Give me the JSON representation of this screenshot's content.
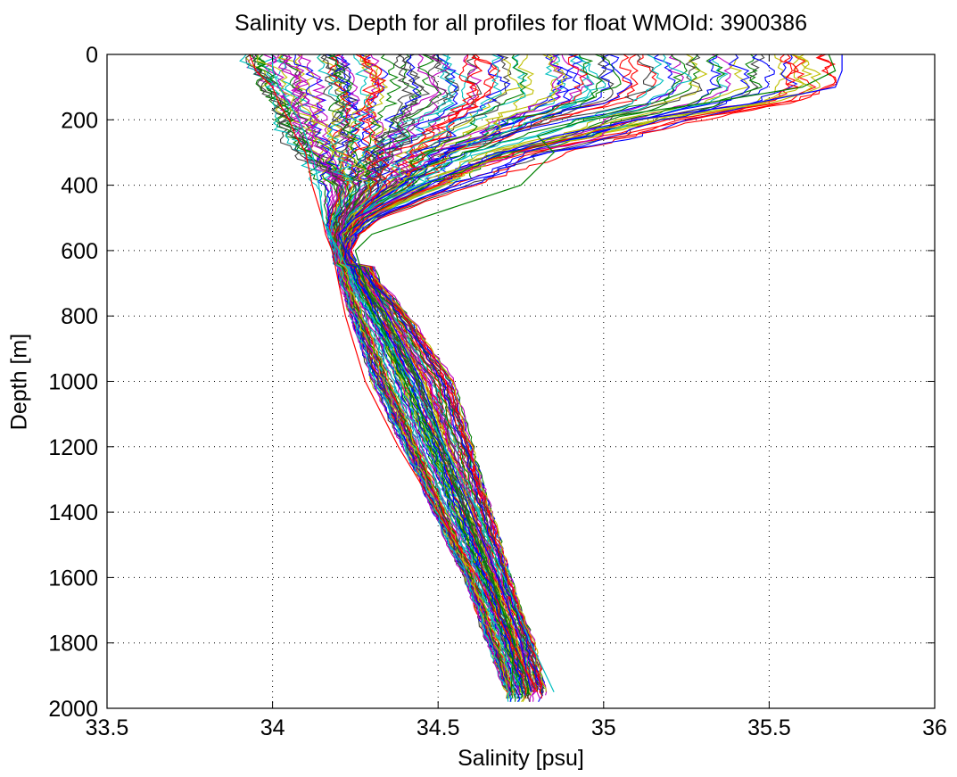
{
  "chart_data": {
    "type": "line",
    "title": "Salinity vs. Depth for all profiles for float WMOId: 3900386",
    "xlabel": "Salinity [psu]",
    "ylabel": "Depth [m]",
    "xlim": [
      33.5,
      36
    ],
    "ylim": [
      0,
      2000
    ],
    "y_reversed": true,
    "grid": true,
    "grid_style": "dotted",
    "x_ticks": [
      "33.5",
      "34",
      "34.5",
      "35",
      "35.5",
      "36"
    ],
    "y_ticks": [
      "0",
      "200",
      "400",
      "600",
      "800",
      "1000",
      "1200",
      "1400",
      "1600",
      "1800",
      "2000"
    ],
    "series_colors": [
      "#0000ff",
      "#008000",
      "#ff0000",
      "#00bfbf",
      "#bf00bf",
      "#bfbf00",
      "#404040"
    ],
    "series_count": 120,
    "envelope": {
      "depth": [
        0,
        50,
        100,
        150,
        200,
        250,
        300,
        400,
        500,
        550,
        600,
        700,
        800,
        1000,
        1200,
        1400,
        1600,
        1800,
        1950
      ],
      "salinity_min": [
        33.93,
        33.95,
        33.97,
        34.0,
        34.02,
        34.05,
        34.08,
        34.12,
        34.13,
        34.15,
        34.17,
        34.18,
        34.2,
        34.25,
        34.35,
        34.45,
        34.55,
        34.62,
        34.68
      ],
      "salinity_max": [
        35.7,
        35.72,
        35.72,
        35.6,
        35.35,
        35.2,
        34.95,
        34.75,
        34.45,
        34.35,
        34.3,
        34.35,
        34.45,
        34.6,
        34.65,
        34.7,
        34.75,
        34.82,
        34.85
      ]
    },
    "series": [
      {
        "depth": [
          0,
          50,
          100,
          150,
          200,
          250,
          300,
          400,
          500,
          550,
          600,
          700,
          800,
          1000,
          1200,
          1400,
          1600,
          1800,
          1950
        ],
        "salinity": [
          35.72,
          35.72,
          35.7,
          35.45,
          35.1,
          34.85,
          34.7,
          34.45,
          34.25,
          34.2,
          34.22,
          34.3,
          34.35,
          34.45,
          34.52,
          34.6,
          34.68,
          34.75,
          34.78
        ]
      },
      {
        "depth": [
          0,
          50,
          100,
          150,
          200,
          250,
          300,
          400,
          500,
          550,
          600,
          700,
          800,
          1000,
          1200,
          1400,
          1600,
          1800,
          1950
        ],
        "salinity": [
          35.68,
          35.7,
          35.6,
          35.3,
          34.95,
          34.8,
          34.85,
          34.75,
          34.45,
          34.3,
          34.25,
          34.28,
          34.32,
          34.4,
          34.5,
          34.58,
          34.66,
          34.73,
          34.72
        ]
      },
      {
        "depth": [
          0,
          50,
          100,
          150,
          200,
          250,
          300,
          400,
          500,
          550,
          600,
          700,
          800,
          1000,
          1200,
          1400,
          1600,
          1800,
          1950
        ],
        "salinity": [
          33.93,
          33.95,
          34.0,
          34.02,
          34.05,
          34.07,
          34.1,
          34.12,
          34.15,
          34.16,
          34.18,
          34.2,
          34.22,
          34.28,
          34.38,
          34.5,
          34.62,
          34.72,
          34.8
        ]
      },
      {
        "depth": [
          0,
          50,
          100,
          150,
          200,
          250,
          300,
          400,
          500,
          550,
          600,
          700,
          800,
          1000,
          1200,
          1400,
          1600,
          1800,
          1950
        ],
        "salinity": [
          34.0,
          34.0,
          34.02,
          34.05,
          34.08,
          34.1,
          34.12,
          34.14,
          34.15,
          34.17,
          34.2,
          34.25,
          34.3,
          34.42,
          34.52,
          34.62,
          34.7,
          34.78,
          34.85
        ]
      }
    ]
  }
}
